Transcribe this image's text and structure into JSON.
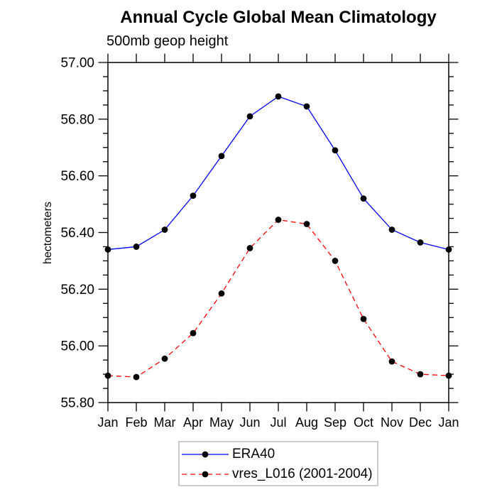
{
  "title": "Annual Cycle Global Mean Climatology",
  "subtitle": "500mb geop height",
  "chart_data": {
    "type": "line",
    "x_categories": [
      "Jan",
      "Feb",
      "Mar",
      "Apr",
      "May",
      "Jun",
      "Jul",
      "Aug",
      "Sep",
      "Oct",
      "Nov",
      "Dec",
      "Jan"
    ],
    "ylabel": "hectometers",
    "ylim": [
      55.8,
      57.0
    ],
    "ytick_step": 0.2,
    "ytick_minor_step": 0.05,
    "ytick_label_format": "2-decimals",
    "grid": false,
    "legend_position": "bottom-center",
    "series": [
      {
        "name": "ERA40",
        "color": "#0000ff",
        "line_style": "solid",
        "marker": "filled-circle",
        "marker_color": "#000000",
        "values": [
          56.34,
          56.35,
          56.41,
          56.53,
          56.67,
          56.81,
          56.88,
          56.845,
          56.69,
          56.52,
          56.41,
          56.365,
          56.34
        ]
      },
      {
        "name": "vres_L016 (2001-2004)",
        "color": "#ff0000",
        "line_style": "dashed",
        "marker": "filled-circle",
        "marker_color": "#000000",
        "values": [
          55.895,
          55.89,
          55.955,
          56.045,
          56.185,
          56.345,
          56.445,
          56.43,
          56.3,
          56.095,
          55.945,
          55.9,
          55.895
        ]
      }
    ]
  },
  "colors": {
    "axis": "#000000",
    "legend_border": "#a9a9a9",
    "background": "#ffffff"
  }
}
